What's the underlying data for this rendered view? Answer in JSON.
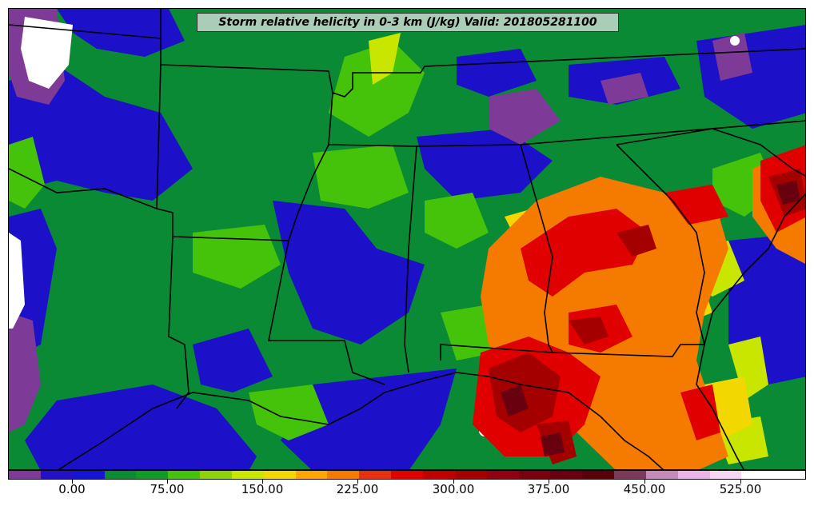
{
  "title": "Storm relative helicity in 0-3 km (J/kg) Valid: 201805281100",
  "colorbar": {
    "colors": [
      "#7d3a96",
      "#2410c8",
      "#1414d2",
      "#0a8a35",
      "#0f9a2a",
      "#45c20a",
      "#8fd10a",
      "#c8e600",
      "#f2d700",
      "#ffa500",
      "#f57a00",
      "#e83010",
      "#e00000",
      "#c00000",
      "#a40000",
      "#900010",
      "#7a0010",
      "#680010",
      "#5a0008",
      "#7a3a5a",
      "#c48ab8",
      "#ebb4e8",
      "#f7d6f4",
      "#ffffff",
      "#ffffff"
    ],
    "ticks": [
      "0.00",
      "75.00",
      "150.00",
      "225.00",
      "300.00",
      "375.00",
      "450.00",
      "525.00"
    ]
  },
  "field_colors": {
    "purple": "#7d3a96",
    "blue": "#1c10c8",
    "green_dark": "#0a8a35",
    "green": "#45c20a",
    "green_light": "#8fd10a",
    "yellow_green": "#c8e600",
    "yellow": "#f2d700",
    "orange": "#f57a00",
    "red": "#e00000",
    "dark_red": "#a40000",
    "maroon": "#680010",
    "pink": "#c48ab8",
    "white": "#ffffff"
  }
}
